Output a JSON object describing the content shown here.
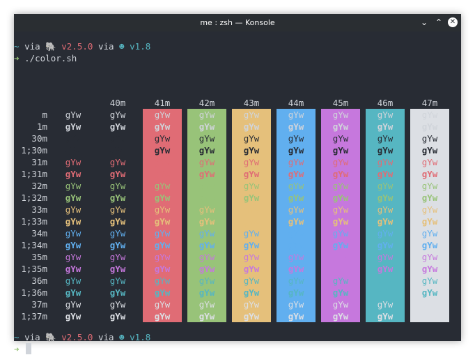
{
  "window": {
    "title": "me : zsh — Konsole"
  },
  "titlebar_buttons": {
    "minimize": "⌄",
    "maximize": "⌃",
    "close": "✕"
  },
  "prompt1": {
    "tilde": "~",
    "via1": "via",
    "ruby_icon": "🐘",
    "ruby_version": "v2.5.0",
    "via2": "via",
    "pkg_icon": "☻",
    "pkg_version": "v1.8"
  },
  "command": {
    "arrow": "➜",
    "text": "./color.sh"
  },
  "prompt2": {
    "tilde": "~",
    "via1": "via",
    "ruby_icon": "🐘",
    "ruby_version": "v2.5.0",
    "via2": "via",
    "pkg_icon": "☻",
    "pkg_version": "v1.8"
  },
  "prompt2_arrow": "➜",
  "sample_text": "gYw",
  "bg_headers": [
    "40m",
    "41m",
    "42m",
    "43m",
    "44m",
    "45m",
    "46m",
    "47m"
  ],
  "bg_colors": [
    "",
    "#e06c75",
    "#98c379",
    "#e5c07b",
    "#61afef",
    "#c678dd",
    "#56b6c2",
    "#dcdfe4"
  ],
  "row_labels": [
    "m",
    "1m",
    "30m",
    "1;30m",
    "31m",
    "1;31m",
    "32m",
    "1;32m",
    "33m",
    "1;33m",
    "34m",
    "1;34m",
    "35m",
    "1;35m",
    "36m",
    "1;36m",
    "37m",
    "1;37m"
  ],
  "fg_colors": [
    "#d0d4da",
    "#d0d4da",
    "#282c34",
    "#282c34",
    "#e06c75",
    "#e06c75",
    "#98c379",
    "#98c379",
    "#e5c07b",
    "#e5c07b",
    "#61afef",
    "#61afef",
    "#c678dd",
    "#c678dd",
    "#56b6c2",
    "#56b6c2",
    "#dcdfe4",
    "#dcdfe4"
  ]
}
